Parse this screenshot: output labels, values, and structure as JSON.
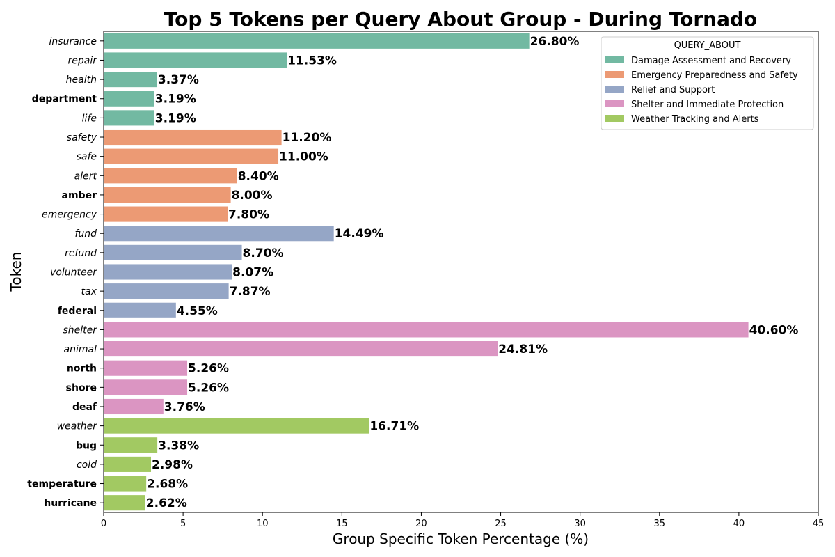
{
  "chart_data": {
    "type": "bar",
    "orientation": "horizontal",
    "title": "Top 5 Tokens per Query About Group - During Tornado",
    "xlabel": "Group Specific Token Percentage (%)",
    "ylabel": "Token",
    "xlim": [
      0,
      45
    ],
    "xticks": [
      0,
      5,
      10,
      15,
      20,
      25,
      30,
      35,
      40,
      45
    ],
    "grid": false,
    "legend": {
      "title": "QUERY_ABOUT",
      "placement": "top-right",
      "entries": [
        {
          "name": "Damage Assessment and Recovery",
          "color": "#72b9a2"
        },
        {
          "name": "Emergency Preparedness and Safety",
          "color": "#ec9a74"
        },
        {
          "name": "Relief and Support",
          "color": "#95a6c6"
        },
        {
          "name": "Shelter and Immediate Protection",
          "color": "#db95c2"
        },
        {
          "name": "Weather Tracking and Alerts",
          "color": "#a2c962"
        }
      ]
    },
    "bars": [
      {
        "token": "insurance",
        "value": 26.8,
        "label": "26.80%",
        "group": 0,
        "style": "italic"
      },
      {
        "token": "repair",
        "value": 11.53,
        "label": "11.53%",
        "group": 0,
        "style": "italic"
      },
      {
        "token": "health",
        "value": 3.37,
        "label": "3.37%",
        "group": 0,
        "style": "italic"
      },
      {
        "token": "department",
        "value": 3.19,
        "label": "3.19%",
        "group": 0,
        "style": "bold"
      },
      {
        "token": "life",
        "value": 3.19,
        "label": "3.19%",
        "group": 0,
        "style": "italic"
      },
      {
        "token": "safety",
        "value": 11.2,
        "label": "11.20%",
        "group": 1,
        "style": "italic"
      },
      {
        "token": "safe",
        "value": 11.0,
        "label": "11.00%",
        "group": 1,
        "style": "italic"
      },
      {
        "token": "alert",
        "value": 8.4,
        "label": "8.40%",
        "group": 1,
        "style": "italic"
      },
      {
        "token": "amber",
        "value": 8.0,
        "label": "8.00%",
        "group": 1,
        "style": "bold"
      },
      {
        "token": "emergency",
        "value": 7.8,
        "label": "7.80%",
        "group": 1,
        "style": "italic"
      },
      {
        "token": "fund",
        "value": 14.49,
        "label": "14.49%",
        "group": 2,
        "style": "italic"
      },
      {
        "token": "refund",
        "value": 8.7,
        "label": "8.70%",
        "group": 2,
        "style": "italic"
      },
      {
        "token": "volunteer",
        "value": 8.07,
        "label": "8.07%",
        "group": 2,
        "style": "italic"
      },
      {
        "token": "tax",
        "value": 7.87,
        "label": "7.87%",
        "group": 2,
        "style": "italic"
      },
      {
        "token": "federal",
        "value": 4.55,
        "label": "4.55%",
        "group": 2,
        "style": "bold"
      },
      {
        "token": "shelter",
        "value": 40.6,
        "label": "40.60%",
        "group": 3,
        "style": "italic"
      },
      {
        "token": "animal",
        "value": 24.81,
        "label": "24.81%",
        "group": 3,
        "style": "italic"
      },
      {
        "token": "north",
        "value": 5.26,
        "label": "5.26%",
        "group": 3,
        "style": "bold"
      },
      {
        "token": "shore",
        "value": 5.26,
        "label": "5.26%",
        "group": 3,
        "style": "bold"
      },
      {
        "token": "deaf",
        "value": 3.76,
        "label": "3.76%",
        "group": 3,
        "style": "bold"
      },
      {
        "token": "weather",
        "value": 16.71,
        "label": "16.71%",
        "group": 4,
        "style": "italic"
      },
      {
        "token": "bug",
        "value": 3.38,
        "label": "3.38%",
        "group": 4,
        "style": "bold"
      },
      {
        "token": "cold",
        "value": 2.98,
        "label": "2.98%",
        "group": 4,
        "style": "italic"
      },
      {
        "token": "temperature",
        "value": 2.68,
        "label": "2.68%",
        "group": 4,
        "style": "bold"
      },
      {
        "token": "hurricane",
        "value": 2.62,
        "label": "2.62%",
        "group": 4,
        "style": "bold"
      }
    ]
  }
}
